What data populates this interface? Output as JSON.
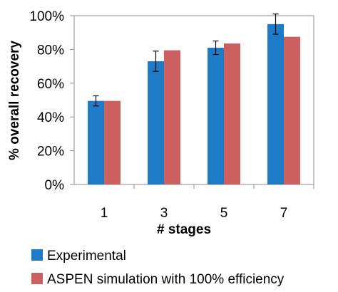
{
  "chart_data": {
    "type": "bar",
    "categories": [
      "1",
      "3",
      "5",
      "7"
    ],
    "series": [
      {
        "name": "Experimental",
        "color": "#1E7BC7",
        "values": [
          49.5,
          73,
          81,
          95
        ],
        "error": [
          3,
          6,
          4,
          6
        ]
      },
      {
        "name": "ASPEN simulation with 100% efficiency",
        "color": "#CC6060",
        "values": [
          49.5,
          79.5,
          83.5,
          87.5
        ]
      }
    ],
    "xlabel": "# stages",
    "ylabel": "% overall recovery",
    "ylim": [
      0,
      100
    ],
    "yticks": [
      "0%",
      "20%",
      "40%",
      "60%",
      "80%",
      "100%"
    ],
    "grid": false,
    "legend_position": "bottom"
  }
}
